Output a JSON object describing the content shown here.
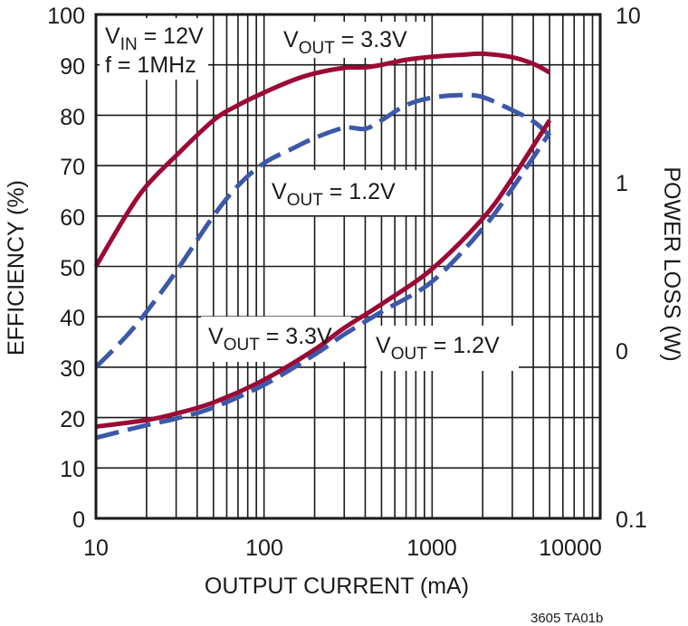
{
  "chart_data": {
    "type": "line",
    "title": "",
    "xlabel": "OUTPUT CURRENT (mA)",
    "ylabel": "EFFICIENCY (%)",
    "y2label": "POWER LOSS (W)",
    "xscale": "log",
    "xlim": [
      10,
      10000
    ],
    "ylim": [
      0,
      100
    ],
    "x_ticks": [
      "10",
      "100",
      "1000",
      "10000"
    ],
    "y_ticks": [
      "0",
      "10",
      "20",
      "30",
      "40",
      "50",
      "60",
      "70",
      "80",
      "90",
      "100"
    ],
    "y2_ticks": [
      "0.1",
      "0",
      "1",
      "10"
    ],
    "grid": true,
    "annotations": {
      "conditions_line1_main": "V",
      "conditions_line1_sub": "IN",
      "conditions_line1_rest": " = 12V",
      "conditions_line2": "f = 1MHz",
      "label_eff_33_main": "V",
      "label_eff_33_sub": "OUT",
      "label_eff_33_rest": " = 3.3V",
      "label_eff_12_main": "V",
      "label_eff_12_sub": "OUT",
      "label_eff_12_rest": " = 1.2V",
      "label_loss_33_main": "V",
      "label_loss_33_sub": "OUT",
      "label_loss_33_rest": " = 3.3V",
      "label_loss_12_main": "V",
      "label_loss_12_sub": "OUT",
      "label_loss_12_rest": " = 1.2V"
    },
    "caption": "3605 TA01b",
    "colors": {
      "vout_3v3": "#9b0a35",
      "vout_1v2": "#3d58a8",
      "grid": "#1a1a1a"
    },
    "series": [
      {
        "name": "Efficiency VOUT = 3.3V",
        "axis": "left",
        "style": "solid",
        "color": "#9b0a35",
        "x": [
          10,
          15,
          20,
          30,
          50,
          70,
          100,
          150,
          200,
          300,
          400,
          500,
          700,
          1000,
          1500,
          2000,
          3000,
          4000,
          5000
        ],
        "values": [
          50,
          60,
          66,
          72,
          79,
          82,
          84.5,
          87,
          88.3,
          89.4,
          89.5,
          90,
          91,
          91.6,
          92,
          92.2,
          91.5,
          90.2,
          88.5
        ]
      },
      {
        "name": "Efficiency VOUT = 1.2V",
        "axis": "left",
        "style": "dashed",
        "color": "#3d58a8",
        "x": [
          10,
          15,
          20,
          30,
          50,
          70,
          100,
          150,
          200,
          300,
          400,
          500,
          700,
          1000,
          1500,
          2000,
          3000,
          4000,
          5000
        ],
        "values": [
          30,
          36,
          41,
          49,
          60,
          66,
          70.5,
          73.5,
          75.5,
          77.5,
          77.3,
          79,
          82,
          83.5,
          84,
          83.6,
          81,
          78.8,
          76
        ]
      },
      {
        "name": "Power Loss VOUT = 3.3V",
        "axis": "right",
        "style": "solid",
        "color": "#9b0a35",
        "x": [
          10,
          20,
          30,
          50,
          100,
          200,
          300,
          500,
          1000,
          2000,
          3000,
          5000
        ],
        "values_plot_pct_equiv": [
          18.2,
          19.5,
          20.8,
          23,
          27.5,
          33.5,
          37.8,
          42.5,
          49.5,
          59.5,
          67.5,
          79
        ]
      },
      {
        "name": "Power Loss VOUT = 1.2V",
        "axis": "right",
        "style": "dashed",
        "color": "#3d58a8",
        "x": [
          10,
          20,
          30,
          50,
          100,
          200,
          300,
          500,
          1000,
          2000,
          3000,
          5000
        ],
        "values_plot_pct_equiv": [
          16,
          18.5,
          19.8,
          22,
          26.5,
          32.5,
          36.5,
          41,
          47,
          57.5,
          65.5,
          76.5
        ]
      }
    ]
  }
}
